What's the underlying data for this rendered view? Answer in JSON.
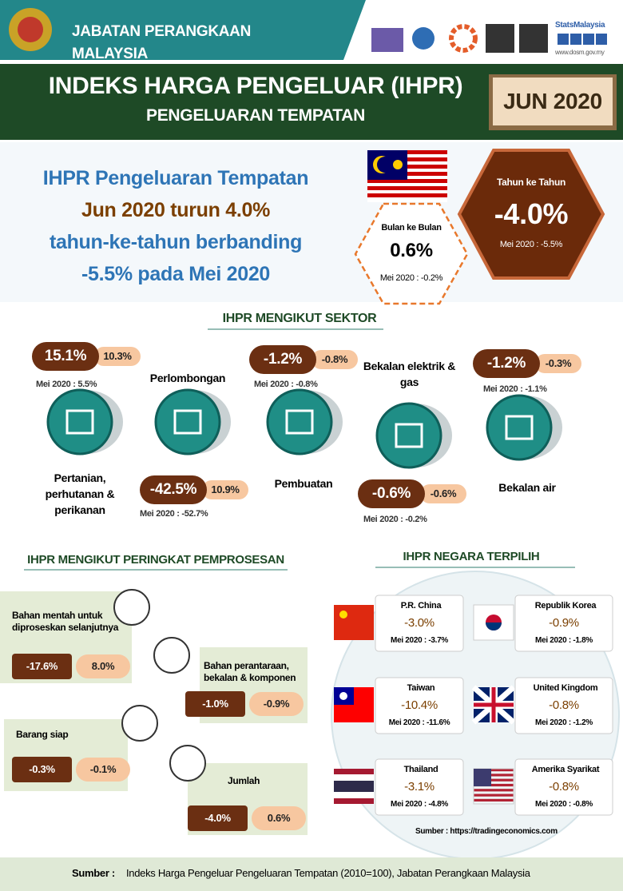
{
  "header": {
    "agency": "JABATAN PERANGKAAN MALAYSIA",
    "social": "StatsMalaysia",
    "website": "www.dosm.gov.my"
  },
  "banner": {
    "title": "INDEKS HARGA PENGELUAR (IHPR)",
    "subtitle": "PENGELUARAN TEMPATAN",
    "period": "JUN 2020"
  },
  "summary": {
    "lines": [
      "IHPR Pengeluaran Tempatan",
      "Jun 2020 turun  4.0%",
      "tahun-ke-tahun  berbanding",
      "-5.5% pada Mei 2020"
    ]
  },
  "month_on_month": {
    "label": "Bulan ke Bulan",
    "value": "0.6%",
    "previous": "Mei 2020 : -0.2%"
  },
  "year_on_year": {
    "label": "Tahun ke Tahun",
    "value": "-4.0%",
    "previous": "Mei 2020 : -5.5%"
  },
  "sectors": {
    "title": "IHPR MENGIKUT SEKTOR",
    "items": [
      {
        "name": "Pertanian, perhutanan & perikanan",
        "yoy": "15.1%",
        "mom": "10.3%",
        "previous": "Mei 2020 : 5.5%"
      },
      {
        "name": "Perlombongan",
        "yoy": "-42.5%",
        "mom": "10.9%",
        "previous": "Mei 2020 : -52.7%"
      },
      {
        "name": "Pembuatan",
        "yoy": "-1.2%",
        "mom": "-0.8%",
        "previous": "Mei 2020 : -0.8%"
      },
      {
        "name": "Bekalan elektrik  & gas",
        "yoy": "-0.6%",
        "mom": "-0.6%",
        "previous": "Mei 2020 : -0.2%"
      },
      {
        "name": "Bekalan air",
        "yoy": "-1.2%",
        "mom": "-0.3%",
        "previous": "Mei 2020 : -1.1%"
      }
    ]
  },
  "processing": {
    "title": "IHPR MENGIKUT PERINGKAT PEMPROSESAN",
    "items": [
      {
        "name": "Bahan mentah untuk diproseskan selanjutnya",
        "yoy": "-17.6%",
        "mom": "8.0%"
      },
      {
        "name": "Bahan perantaraan, bekalan & komponen",
        "yoy": "-1.0%",
        "mom": "-0.9%"
      },
      {
        "name": "Barang siap",
        "yoy": "-0.3%",
        "mom": "-0.1%"
      },
      {
        "name": "Jumlah",
        "yoy": "-4.0%",
        "mom": "0.6%"
      }
    ]
  },
  "countries": {
    "title": "IHPR NEGARA TERPILIH",
    "items": [
      {
        "name": "P.R. China",
        "yoy": "-3.0%",
        "previous": "Mei 2020 : -3.7%"
      },
      {
        "name": "Republik Korea",
        "yoy": "-0.9%",
        "previous": "Mei 2020 : -1.8%"
      },
      {
        "name": "Taiwan",
        "yoy": "-10.4%",
        "previous": "Mei 2020 : -11.6%"
      },
      {
        "name": "United Kingdom",
        "yoy": "-0.8%",
        "previous": "Mei 2020 : -1.2%"
      },
      {
        "name": "Thailand",
        "yoy": "-3.1%",
        "previous": "Mei 2020 : -4.8%"
      },
      {
        "name": "Amerika Syarikat",
        "yoy": "-0.8%",
        "previous": "Mei 2020 : -0.8%"
      }
    ],
    "source": "Sumber : https://tradingeconomics.com"
  },
  "footer": {
    "label": "Sumber :",
    "text": "Indeks Harga Pengeluar Pengeluaran Tempatan (2010=100),  Jabatan Perangkaan Malaysia"
  }
}
